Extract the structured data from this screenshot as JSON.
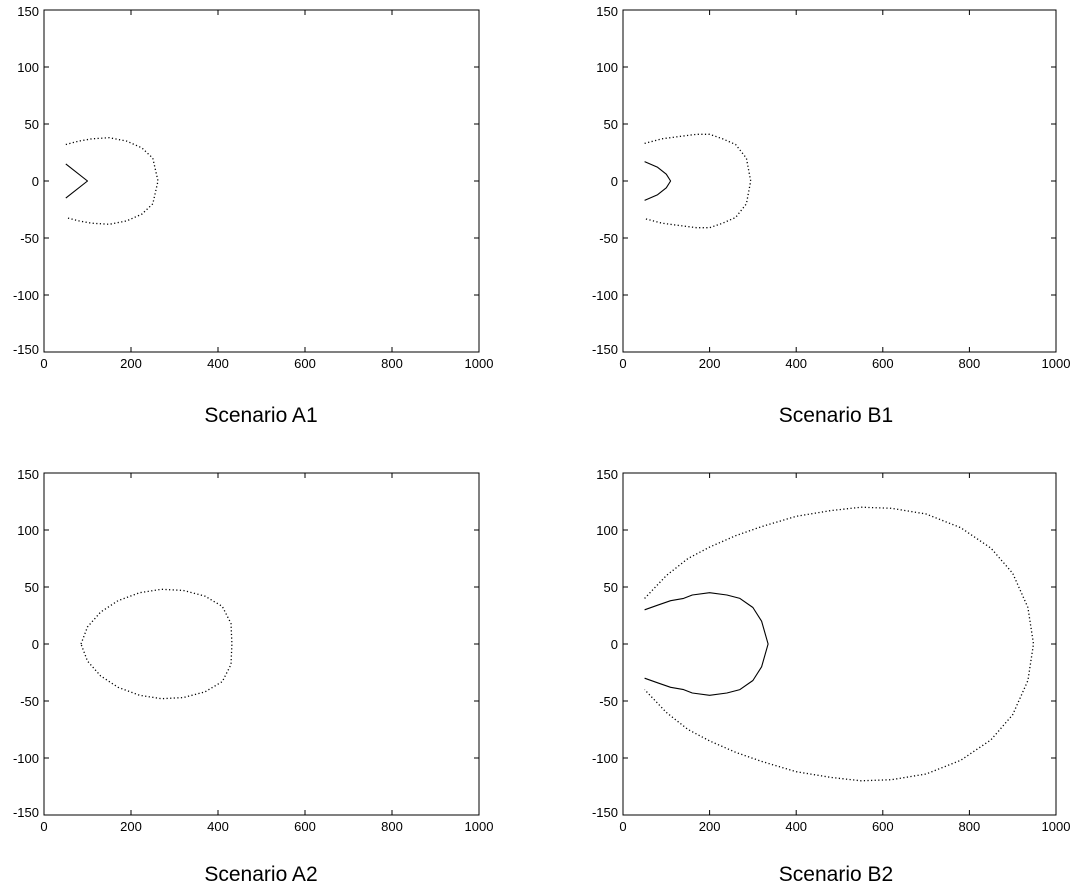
{
  "chart_data": [
    {
      "type": "line",
      "caption": "Scenario A1",
      "xlim": [
        0,
        1000
      ],
      "ylim": [
        -150,
        150
      ],
      "x_ticks": [
        "0",
        "200",
        "400",
        "600",
        "800",
        "1000"
      ],
      "y_ticks": [
        "-150",
        "-100",
        "-50",
        "0",
        "50",
        "100",
        "150"
      ],
      "grid": false,
      "series": [
        {
          "style": "solid",
          "x": [
            50,
            100,
            50
          ],
          "y": [
            15,
            0,
            -15
          ]
        },
        {
          "style": "dotted",
          "x": [
            50,
            80,
            110,
            150,
            190,
            225,
            250,
            262,
            250,
            225,
            190,
            150,
            110,
            80,
            50
          ],
          "y": [
            32,
            35,
            37,
            38,
            35,
            29,
            20,
            0,
            -20,
            -29,
            -35,
            -38,
            -37,
            -35,
            -32
          ]
        }
      ]
    },
    {
      "type": "line",
      "caption": "Scenario B1",
      "xlim": [
        0,
        1000
      ],
      "ylim": [
        -150,
        150
      ],
      "x_ticks": [
        "0",
        "200",
        "400",
        "600",
        "800",
        "1000"
      ],
      "y_ticks": [
        "-150",
        "-100",
        "-50",
        "0",
        "50",
        "100",
        "150"
      ],
      "grid": false,
      "series": [
        {
          "style": "solid",
          "x": [
            50,
            80,
            100,
            110,
            100,
            80,
            50
          ],
          "y": [
            17,
            12,
            6,
            0,
            -6,
            -12,
            -17
          ]
        },
        {
          "style": "dotted",
          "x": [
            50,
            90,
            130,
            170,
            200,
            230,
            260,
            285,
            295,
            285,
            260,
            230,
            200,
            170,
            130,
            90,
            50
          ],
          "y": [
            33,
            37,
            39,
            41,
            41,
            37,
            32,
            20,
            0,
            -20,
            -32,
            -37,
            -41,
            -41,
            -39,
            -37,
            -33
          ]
        }
      ]
    },
    {
      "type": "line",
      "caption": "Scenario A2",
      "xlim": [
        0,
        1000
      ],
      "ylim": [
        -150,
        150
      ],
      "x_ticks": [
        "0",
        "200",
        "400",
        "600",
        "800",
        "1000"
      ],
      "y_ticks": [
        "-150",
        "-100",
        "-50",
        "0",
        "50",
        "100",
        "150"
      ],
      "grid": false,
      "series": [
        {
          "style": "dotted",
          "x": [
            85,
            100,
            130,
            170,
            220,
            270,
            320,
            370,
            410,
            430,
            432,
            430,
            410,
            370,
            320,
            270,
            220,
            170,
            130,
            100,
            85
          ],
          "y": [
            0,
            15,
            28,
            38,
            45,
            48,
            47,
            42,
            33,
            18,
            0,
            -18,
            -33,
            -42,
            -47,
            -48,
            -45,
            -38,
            -28,
            -15,
            0
          ]
        }
      ]
    },
    {
      "type": "line",
      "caption": "Scenario B2",
      "xlim": [
        0,
        1000
      ],
      "ylim": [
        -150,
        150
      ],
      "x_ticks": [
        "0",
        "200",
        "400",
        "600",
        "800",
        "1000"
      ],
      "y_ticks": [
        "-150",
        "-100",
        "-50",
        "0",
        "50",
        "100",
        "150"
      ],
      "grid": false,
      "series": [
        {
          "style": "solid",
          "x": [
            50,
            80,
            110,
            140,
            160,
            200,
            240,
            270,
            300,
            320,
            335,
            320,
            300,
            270,
            240,
            200,
            160,
            140,
            110,
            80,
            50
          ],
          "y": [
            30,
            34,
            38,
            40,
            43,
            45,
            43,
            40,
            32,
            20,
            0,
            -20,
            -32,
            -40,
            -43,
            -45,
            -43,
            -40,
            -38,
            -34,
            -30
          ]
        },
        {
          "style": "dotted",
          "x": [
            50,
            100,
            150,
            200,
            260,
            320,
            400,
            480,
            550,
            620,
            700,
            780,
            850,
            900,
            935,
            948,
            935,
            900,
            850,
            780,
            700,
            620,
            550,
            480,
            400,
            320,
            260,
            200,
            150,
            100,
            50
          ],
          "y": [
            40,
            60,
            75,
            85,
            95,
            103,
            112,
            117,
            120,
            119,
            114,
            102,
            84,
            62,
            32,
            0,
            -32,
            -62,
            -84,
            -102,
            -114,
            -119,
            -120,
            -117,
            -112,
            -103,
            -95,
            -85,
            -75,
            -60,
            -40
          ]
        }
      ]
    }
  ]
}
